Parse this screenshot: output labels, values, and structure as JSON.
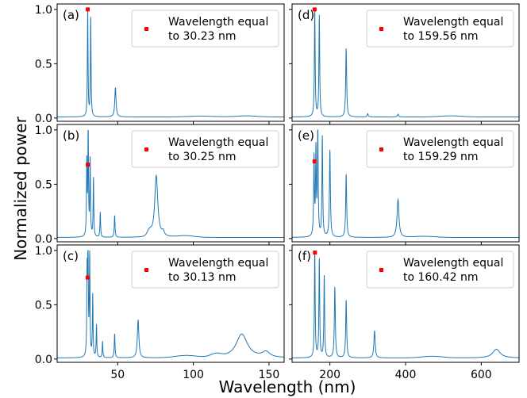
{
  "figure": {
    "ylabel": "Normalized power",
    "xlabel": "Wavelength (nm)"
  },
  "colors": {
    "line": "#1f77b4",
    "marker": "#ff0000"
  },
  "chart_data": [
    {
      "type": "line",
      "label": "(a)",
      "xlim": [
        10,
        160
      ],
      "ylim": [
        -0.03,
        1.05
      ],
      "xticks": [],
      "yticks": [
        0.0,
        0.5,
        1.0
      ],
      "ytick_labels": [
        "0.0",
        "0.5",
        "1.0"
      ],
      "legend": {
        "line1": "Wavelength equal",
        "line2": "to 30.23 nm",
        "placement": "upper-right"
      },
      "marker": {
        "x": 30.23,
        "y": 1.0
      },
      "baseline": 0.01,
      "peaks": [
        {
          "x": 30.2,
          "y": 1.0,
          "w": 0.25
        },
        {
          "x": 32.2,
          "y": 0.92,
          "w": 0.25
        },
        {
          "x": 48.5,
          "y": 0.27,
          "w": 0.5
        }
      ],
      "humps": [
        {
          "x": 105,
          "y": 0.008,
          "w": 12
        },
        {
          "x": 135,
          "y": 0.01,
          "w": 10
        }
      ]
    },
    {
      "type": "line",
      "label": "(d)",
      "xlim": [
        100,
        700
      ],
      "ylim": [
        -0.03,
        1.05
      ],
      "xticks": [],
      "yticks": [],
      "ytick_labels": [],
      "legend": {
        "line1": "Wavelength equal",
        "line2": "to 159.56 nm",
        "placement": "upper-right"
      },
      "marker": {
        "x": 159.56,
        "y": 1.0
      },
      "baseline": 0.01,
      "peaks": [
        {
          "x": 160,
          "y": 1.0,
          "w": 1.2
        },
        {
          "x": 172,
          "y": 0.93,
          "w": 1.2
        },
        {
          "x": 243,
          "y": 0.63,
          "w": 1.5
        },
        {
          "x": 300,
          "y": 0.03,
          "w": 1.5
        },
        {
          "x": 380,
          "y": 0.025,
          "w": 2
        }
      ],
      "humps": [
        {
          "x": 520,
          "y": 0.01,
          "w": 40
        }
      ]
    },
    {
      "type": "line",
      "label": "(b)",
      "xlim": [
        10,
        160
      ],
      "ylim": [
        -0.03,
        1.05
      ],
      "xticks": [],
      "yticks": [
        0.0,
        0.5,
        1.0
      ],
      "ytick_labels": [
        "0.0",
        "0.5",
        "1.0"
      ],
      "legend": {
        "line1": "Wavelength equal",
        "line2": "to 30.25 nm",
        "placement": "upper-right"
      },
      "marker": {
        "x": 30.25,
        "y": 0.68
      },
      "baseline": 0.01,
      "peaks": [
        {
          "x": 29.6,
          "y": 0.68,
          "w": 0.25
        },
        {
          "x": 30.5,
          "y": 1.0,
          "w": 0.25
        },
        {
          "x": 31.8,
          "y": 0.71,
          "w": 0.25
        },
        {
          "x": 34.0,
          "y": 0.54,
          "w": 0.25
        },
        {
          "x": 38.5,
          "y": 0.23,
          "w": 0.25
        },
        {
          "x": 48.0,
          "y": 0.2,
          "w": 0.3
        },
        {
          "x": 75.5,
          "y": 0.57,
          "w": 1.2
        },
        {
          "x": 80,
          "y": 0.04,
          "w": 1
        }
      ],
      "humps": [
        {
          "x": 71,
          "y": 0.05,
          "w": 2
        },
        {
          "x": 95,
          "y": 0.015,
          "w": 8
        }
      ]
    },
    {
      "type": "line",
      "label": "(e)",
      "xlim": [
        100,
        700
      ],
      "ylim": [
        -0.03,
        1.05
      ],
      "xticks": [],
      "yticks": [],
      "ytick_labels": [],
      "legend": {
        "line1": "Wavelength equal",
        "line2": "to 159.29 nm",
        "placement": "upper-right"
      },
      "marker": {
        "x": 159.29,
        "y": 0.71
      },
      "baseline": 0.01,
      "peaks": [
        {
          "x": 158,
          "y": 0.72,
          "w": 1.2
        },
        {
          "x": 163,
          "y": 0.78,
          "w": 1.2
        },
        {
          "x": 168,
          "y": 1.0,
          "w": 1.2
        },
        {
          "x": 180,
          "y": 0.92,
          "w": 1.2
        },
        {
          "x": 200,
          "y": 0.8,
          "w": 1.5
        },
        {
          "x": 243,
          "y": 0.58,
          "w": 1.5
        },
        {
          "x": 380,
          "y": 0.35,
          "w": 3
        }
      ],
      "humps": [
        {
          "x": 450,
          "y": 0.01,
          "w": 40
        }
      ]
    },
    {
      "type": "line",
      "label": "(c)",
      "xlim": [
        10,
        160
      ],
      "ylim": [
        -0.03,
        1.05
      ],
      "xticks": [
        50,
        100,
        150
      ],
      "xtick_labels": [
        "50",
        "100",
        "150"
      ],
      "yticks": [
        0.0,
        0.5,
        1.0
      ],
      "ytick_labels": [
        "0.0",
        "0.5",
        "1.0"
      ],
      "legend": {
        "line1": "Wavelength equal",
        "line2": "to 30.13 nm",
        "placement": "upper-right"
      },
      "marker": {
        "x": 30.13,
        "y": 0.75
      },
      "baseline": 0.01,
      "peaks": [
        {
          "x": 29.8,
          "y": 0.75,
          "w": 0.25
        },
        {
          "x": 30.4,
          "y": 1.0,
          "w": 0.25
        },
        {
          "x": 31.5,
          "y": 0.94,
          "w": 0.25
        },
        {
          "x": 33.5,
          "y": 0.57,
          "w": 0.25
        },
        {
          "x": 36.0,
          "y": 0.3,
          "w": 0.25
        },
        {
          "x": 40.0,
          "y": 0.15,
          "w": 0.25
        },
        {
          "x": 48.0,
          "y": 0.22,
          "w": 0.3
        },
        {
          "x": 63.5,
          "y": 0.35,
          "w": 0.6
        },
        {
          "x": 132,
          "y": 0.22,
          "w": 4.5
        },
        {
          "x": 148,
          "y": 0.05,
          "w": 3
        }
      ],
      "humps": [
        {
          "x": 95,
          "y": 0.02,
          "w": 10
        },
        {
          "x": 115,
          "y": 0.03,
          "w": 5
        }
      ]
    },
    {
      "type": "line",
      "label": "(f)",
      "xlim": [
        100,
        700
      ],
      "ylim": [
        -0.03,
        1.05
      ],
      "xticks": [
        200,
        400,
        600
      ],
      "xtick_labels": [
        "200",
        "400",
        "600"
      ],
      "yticks": [],
      "ytick_labels": [],
      "legend": {
        "line1": "Wavelength equal",
        "line2": "to 160.42 nm",
        "placement": "upper-right"
      },
      "marker": {
        "x": 160.42,
        "y": 0.98
      },
      "baseline": 0.01,
      "peaks": [
        {
          "x": 160,
          "y": 0.98,
          "w": 1.2
        },
        {
          "x": 172,
          "y": 0.9,
          "w": 1.2
        },
        {
          "x": 185,
          "y": 0.75,
          "w": 1.2
        },
        {
          "x": 213,
          "y": 0.65,
          "w": 1.5
        },
        {
          "x": 243,
          "y": 0.53,
          "w": 1.5
        },
        {
          "x": 318,
          "y": 0.25,
          "w": 2
        },
        {
          "x": 640,
          "y": 0.08,
          "w": 12
        }
      ],
      "humps": [
        {
          "x": 470,
          "y": 0.015,
          "w": 40
        }
      ]
    }
  ]
}
